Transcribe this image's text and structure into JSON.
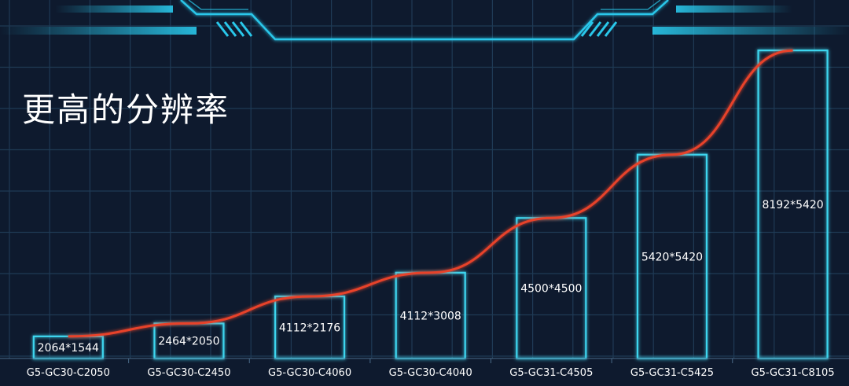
{
  "colors": {
    "background": "#0e1a2e",
    "grid": "#1f3a55",
    "bar_outline": "#3ed6ef",
    "line": "#e8432a",
    "text": "#ffffff",
    "hud_accent": "#29c7ea"
  },
  "chart_data": {
    "type": "bar",
    "title": "更高的分辨率",
    "categories": [
      "G5-GC30-C2050",
      "G5-GC30-C2450",
      "G5-GC30-C4060",
      "G5-GC30-C4040",
      "G5-GC31-C4505",
      "G5-GC31-C5425",
      "G5-GC31-C8105"
    ],
    "bar_labels": [
      "2064*1544",
      "2464*2050",
      "4112*2176",
      "4112*3008",
      "4500*4500",
      "5420*5420",
      "8192*5420"
    ],
    "values": [
      3186816,
      5051200,
      8947712,
      12368896,
      20250000,
      29376400,
      44400640
    ],
    "overlay": "line",
    "ylim": [
      0,
      46000000
    ],
    "grid": true
  }
}
